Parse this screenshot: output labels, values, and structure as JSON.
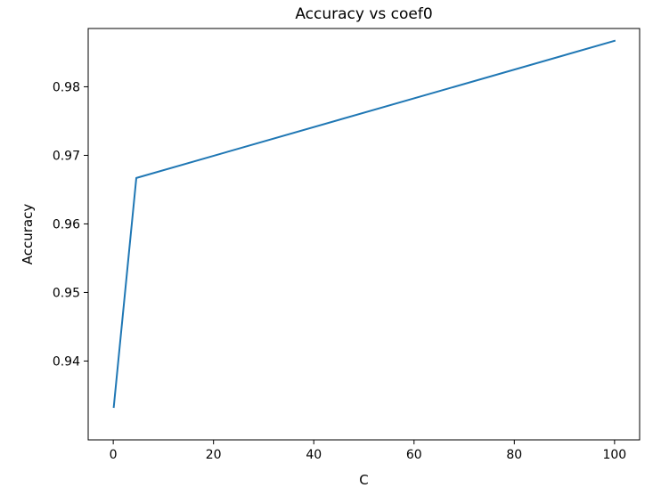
{
  "chart_data": {
    "type": "line",
    "title": "Accuracy vs coef0",
    "xlabel": "C",
    "ylabel": "Accuracy",
    "xlim": [
      -5,
      105
    ],
    "ylim": [
      0.9285,
      0.9885
    ],
    "xticks": [
      0,
      20,
      40,
      60,
      80,
      100
    ],
    "xtick_labels": [
      "0",
      "20",
      "40",
      "60",
      "80",
      "100"
    ],
    "yticks": [
      0.94,
      0.95,
      0.96,
      0.97,
      0.98
    ],
    "ytick_labels": [
      "0.94",
      "0.95",
      "0.96",
      "0.97",
      "0.98"
    ],
    "grid": false,
    "series": [
      {
        "x": [
          0.1,
          4.6,
          100
        ],
        "y": [
          0.9333,
          0.9667,
          0.9867
        ],
        "color": "#1f77b4"
      }
    ]
  }
}
